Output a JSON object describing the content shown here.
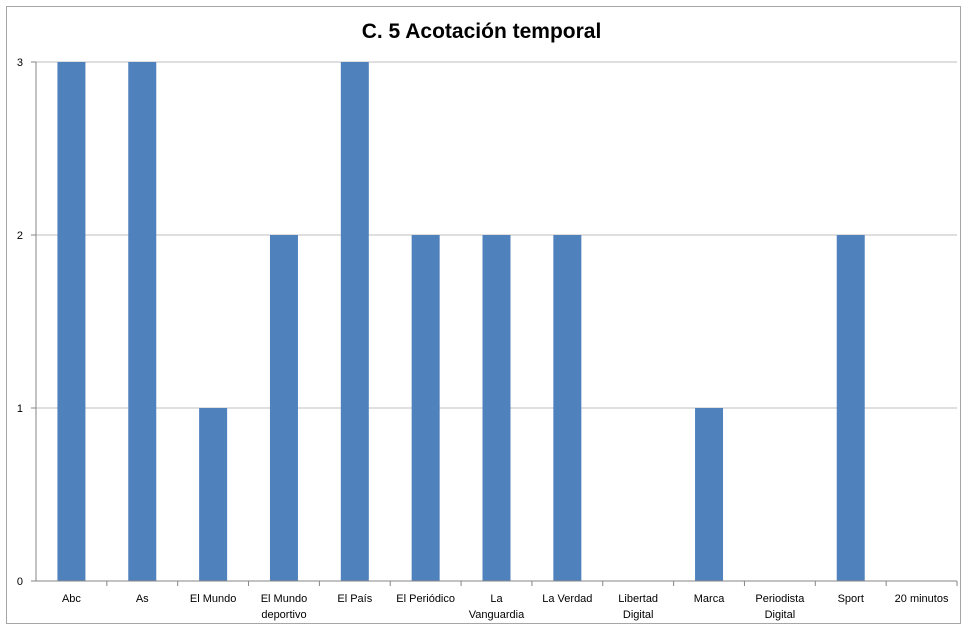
{
  "chart_data": {
    "type": "bar",
    "title": "C. 5 Acotación temporal",
    "categories": [
      [
        "Abc"
      ],
      [
        "As"
      ],
      [
        "El Mundo"
      ],
      [
        "El Mundo",
        "deportivo"
      ],
      [
        "El País"
      ],
      [
        "El Periódico"
      ],
      [
        "La",
        "Vanguardia"
      ],
      [
        "La Verdad"
      ],
      [
        "Libertad",
        "Digital"
      ],
      [
        "Marca"
      ],
      [
        "Periodista",
        "Digital"
      ],
      [
        "Sport"
      ],
      [
        "20 minutos"
      ]
    ],
    "values": [
      3,
      3,
      1,
      2,
      3,
      2,
      2,
      2,
      0,
      1,
      0,
      2,
      0
    ],
    "ylim": [
      0,
      3
    ],
    "yticks": [
      "0",
      "1",
      "2",
      "3"
    ],
    "grid": true,
    "bar_color": "#4f81bd",
    "grid_color": "#bfbfbf"
  }
}
